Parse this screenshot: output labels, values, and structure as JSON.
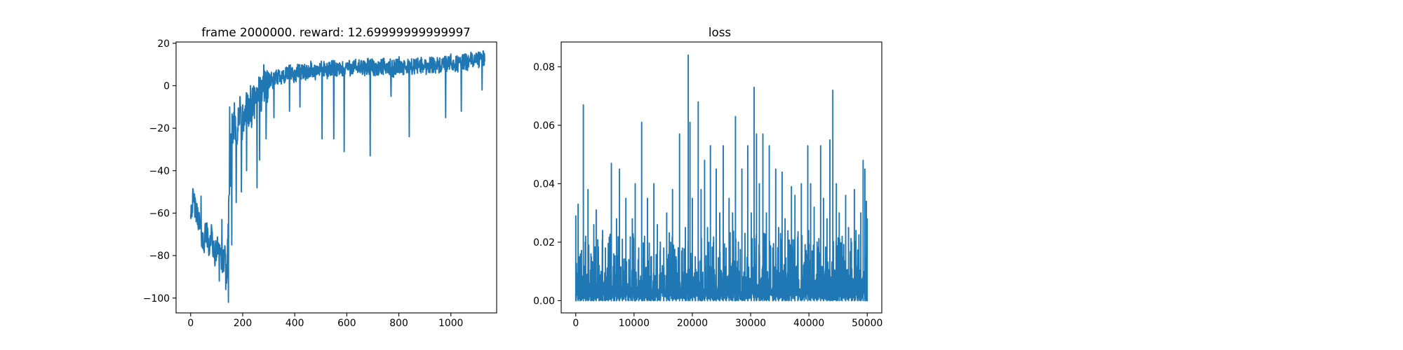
{
  "chart_data": [
    {
      "type": "line",
      "title": "frame 2000000. reward: 12.69999999999997",
      "xlabel": "",
      "ylabel": "",
      "xlim": [
        -56,
        1176
      ],
      "ylim": [
        -107,
        20.6
      ],
      "xticks": [
        0,
        200,
        400,
        600,
        800,
        1000
      ],
      "xtick_labels": [
        "0",
        "200",
        "400",
        "600",
        "800",
        "1000"
      ],
      "yticks": [
        -100,
        -80,
        -60,
        -40,
        -20,
        0,
        20
      ],
      "ytick_labels": [
        "−100",
        "−80",
        "−60",
        "−40",
        "−20",
        "0",
        "20"
      ],
      "grid": false,
      "color": "#1f77b4",
      "series": [
        {
          "x": [
            0,
            10,
            20,
            30,
            40,
            50,
            60,
            70,
            80,
            90,
            100,
            110,
            120,
            130,
            135,
            140,
            145,
            150,
            155,
            160,
            170,
            180,
            190,
            200,
            210,
            220,
            230,
            240,
            250,
            260,
            270,
            280,
            290,
            300,
            320,
            340,
            360,
            380,
            400,
            420,
            440,
            460,
            480,
            500,
            520,
            540,
            560,
            580,
            600,
            620,
            640,
            660,
            680,
            700,
            720,
            740,
            760,
            780,
            800,
            820,
            840,
            860,
            880,
            900,
            920,
            940,
            960,
            980,
            1000,
            1020,
            1040,
            1060,
            1080,
            1100,
            1120
          ],
          "y": [
            -58,
            -54,
            -60,
            -62,
            -70,
            -74,
            -68,
            -76,
            -70,
            -80,
            -78,
            -72,
            -86,
            -80,
            -84,
            -90,
            -60,
            -45,
            -30,
            -20,
            -15,
            -22,
            -12,
            -20,
            -14,
            -8,
            -18,
            -6,
            -10,
            0,
            -6,
            2,
            -2,
            3,
            2,
            5,
            4,
            6,
            5,
            7,
            6,
            8,
            6,
            8,
            7,
            8,
            8,
            7,
            9,
            8,
            9,
            8,
            9,
            9,
            8,
            9,
            9,
            8,
            10,
            8,
            9,
            9,
            10,
            9,
            10,
            10,
            9,
            10,
            11,
            10,
            11,
            11,
            12,
            12,
            13
          ]
        }
      ],
      "annotations_in_trace": {
        "dips": [
          [
            70,
            -80
          ],
          [
            110,
            -92
          ],
          [
            135,
            -96
          ],
          [
            145,
            -102
          ],
          [
            158,
            -75
          ],
          [
            175,
            -55
          ],
          [
            195,
            -50
          ],
          [
            215,
            -40
          ],
          [
            255,
            -48
          ],
          [
            265,
            -35
          ],
          [
            290,
            -25
          ],
          [
            320,
            -15
          ],
          [
            380,
            -12
          ],
          [
            420,
            -10
          ],
          [
            505,
            -25
          ],
          [
            550,
            -25
          ],
          [
            590,
            -31
          ],
          [
            690,
            -33
          ],
          [
            770,
            -5
          ],
          [
            840,
            -24
          ],
          [
            980,
            -15
          ],
          [
            1040,
            -12
          ],
          [
            1120,
            -2
          ]
        ],
        "spikes": [
          [
            15,
            -51
          ],
          [
            40,
            -52
          ],
          [
            120,
            -63
          ],
          [
            150,
            -10
          ],
          [
            200,
            -9
          ],
          [
            230,
            0
          ],
          [
            280,
            2
          ],
          [
            340,
            5
          ],
          [
            460,
            9
          ],
          [
            620,
            10
          ],
          [
            760,
            11
          ],
          [
            900,
            12
          ],
          [
            1060,
            14
          ],
          [
            1100,
            15
          ]
        ]
      }
    },
    {
      "type": "line",
      "title": "loss",
      "xlabel": "",
      "ylabel": "",
      "xlim": [
        -2500,
        52500
      ],
      "ylim": [
        -0.0042,
        0.0885
      ],
      "xticks": [
        0,
        10000,
        20000,
        30000,
        40000,
        50000
      ],
      "xtick_labels": [
        "0",
        "10000",
        "20000",
        "30000",
        "40000",
        "50000"
      ],
      "yticks": [
        0.0,
        0.02,
        0.04,
        0.06,
        0.08
      ],
      "ytick_labels": [
        "0.00",
        "0.02",
        "0.04",
        "0.06",
        "0.08"
      ],
      "grid": false,
      "color": "#1f77b4",
      "series": [
        {
          "x_start": 0,
          "x_end": 50000,
          "baseline": 0.0,
          "spikes": [
            [
              0,
              0.029
            ],
            [
              400,
              0.033
            ],
            [
              800,
              0.016
            ],
            [
              1300,
              0.067
            ],
            [
              1700,
              0.022
            ],
            [
              2100,
              0.038
            ],
            [
              2600,
              0.016
            ],
            [
              3100,
              0.026
            ],
            [
              3500,
              0.031
            ],
            [
              4000,
              0.012
            ],
            [
              4600,
              0.024
            ],
            [
              5100,
              0.018
            ],
            [
              5600,
              0.01
            ],
            [
              6100,
              0.047
            ],
            [
              6500,
              0.016
            ],
            [
              7000,
              0.028
            ],
            [
              7500,
              0.045
            ],
            [
              8000,
              0.021
            ],
            [
              8600,
              0.035
            ],
            [
              9100,
              0.014
            ],
            [
              9700,
              0.028
            ],
            [
              10200,
              0.04
            ],
            [
              10800,
              0.018
            ],
            [
              11300,
              0.061
            ],
            [
              11800,
              0.022
            ],
            [
              12300,
              0.035
            ],
            [
              12900,
              0.015
            ],
            [
              13400,
              0.04
            ],
            [
              14000,
              0.026
            ],
            [
              14500,
              0.02
            ],
            [
              15100,
              0.018
            ],
            [
              15600,
              0.03
            ],
            [
              16100,
              0.012
            ],
            [
              16600,
              0.038
            ],
            [
              17200,
              0.015
            ],
            [
              17800,
              0.057
            ],
            [
              18300,
              0.018
            ],
            [
              18800,
              0.025
            ],
            [
              19300,
              0.084
            ],
            [
              19600,
              0.061
            ],
            [
              20000,
              0.035
            ],
            [
              20500,
              0.015
            ],
            [
              21000,
              0.068
            ],
            [
              21500,
              0.038
            ],
            [
              22100,
              0.048
            ],
            [
              22600,
              0.025
            ],
            [
              23100,
              0.053
            ],
            [
              23600,
              0.02
            ],
            [
              24100,
              0.045
            ],
            [
              24700,
              0.03
            ],
            [
              25300,
              0.053
            ],
            [
              25800,
              0.018
            ],
            [
              26300,
              0.035
            ],
            [
              26900,
              0.03
            ],
            [
              27400,
              0.063
            ],
            [
              27900,
              0.02
            ],
            [
              28500,
              0.045
            ],
            [
              29000,
              0.015
            ],
            [
              29500,
              0.053
            ],
            [
              30100,
              0.03
            ],
            [
              30600,
              0.073
            ],
            [
              31000,
              0.057
            ],
            [
              31500,
              0.04
            ],
            [
              32100,
              0.057
            ],
            [
              32700,
              0.03
            ],
            [
              33200,
              0.053
            ],
            [
              33800,
              0.018
            ],
            [
              34300,
              0.045
            ],
            [
              34800,
              0.025
            ],
            [
              35400,
              0.044
            ],
            [
              35900,
              0.028
            ],
            [
              36500,
              0.015
            ],
            [
              37000,
              0.039
            ],
            [
              37600,
              0.036
            ],
            [
              38100,
              0.022
            ],
            [
              38700,
              0.04
            ],
            [
              39200,
              0.013
            ],
            [
              39800,
              0.053
            ],
            [
              40300,
              0.04
            ],
            [
              40900,
              0.032
            ],
            [
              41400,
              0.02
            ],
            [
              42000,
              0.053
            ],
            [
              42500,
              0.035
            ],
            [
              43100,
              0.028
            ],
            [
              43600,
              0.055
            ],
            [
              44100,
              0.072
            ],
            [
              44700,
              0.04
            ],
            [
              45200,
              0.03
            ],
            [
              45700,
              0.022
            ],
            [
              46300,
              0.036
            ],
            [
              46800,
              0.025
            ],
            [
              47300,
              0.02
            ],
            [
              47800,
              0.038
            ],
            [
              48400,
              0.015
            ],
            [
              48900,
              0.03
            ],
            [
              49300,
              0.048
            ],
            [
              49600,
              0.045
            ],
            [
              49850,
              0.034
            ],
            [
              50000,
              0.028
            ]
          ]
        }
      ]
    }
  ]
}
